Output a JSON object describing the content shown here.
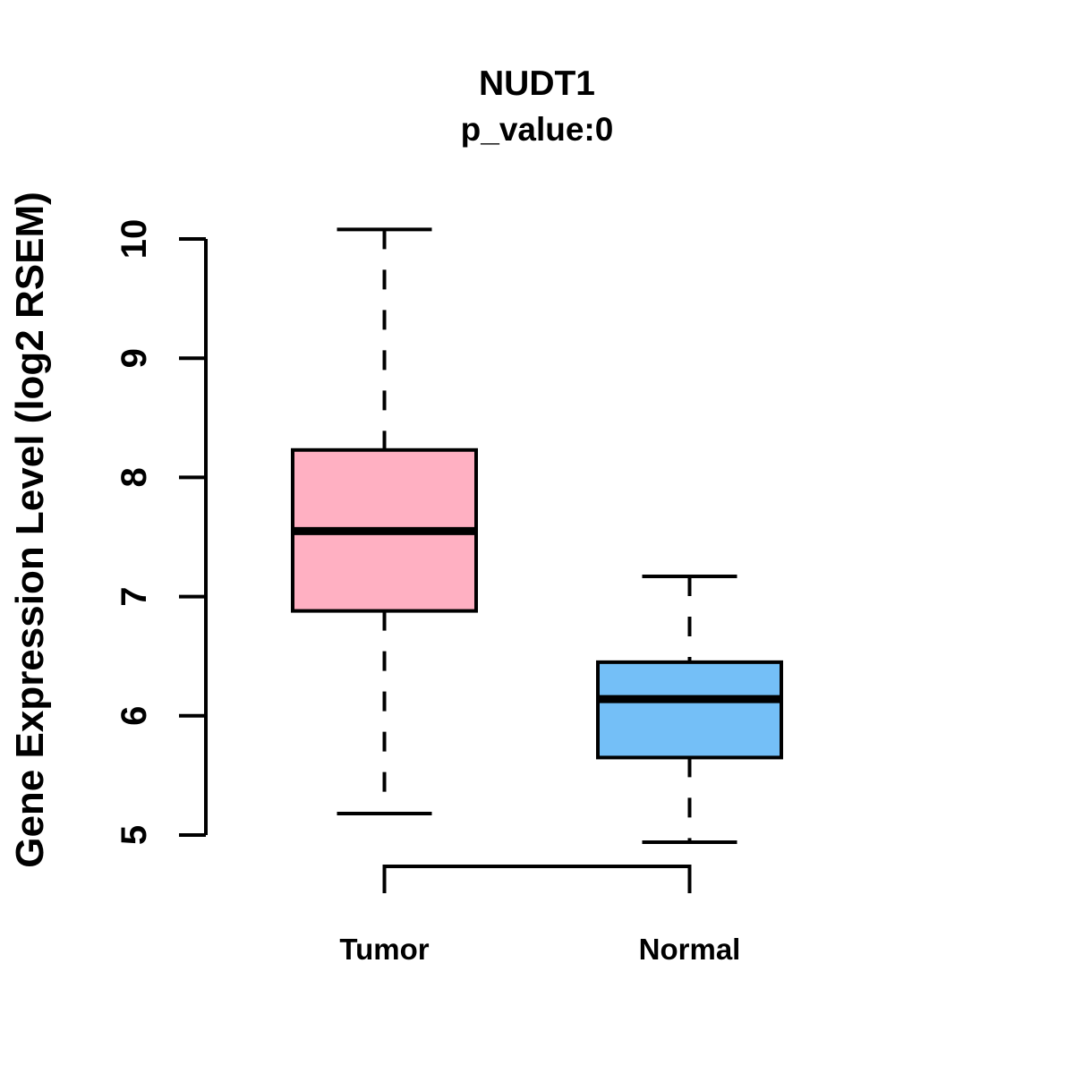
{
  "chart_data": {
    "type": "boxplot",
    "title": "NUDT1",
    "subtitle": "p_value:0",
    "ylabel": "Gene Expression Level (log2 RSEM)",
    "categories": [
      "Tumor",
      "Normal"
    ],
    "series": [
      {
        "name": "Tumor",
        "whisker_low": 5.18,
        "q1": 6.88,
        "median": 7.55,
        "q3": 8.23,
        "whisker_high": 10.08,
        "color": "#FFB0C2"
      },
      {
        "name": "Normal",
        "whisker_low": 4.94,
        "q1": 5.65,
        "median": 6.14,
        "q3": 6.45,
        "whisker_high": 7.17,
        "color": "#74BFF7"
      }
    ],
    "yticks": [
      5,
      6,
      7,
      8,
      9,
      10
    ],
    "ylim": [
      5,
      10
    ],
    "axis_color": "#000000",
    "background_color": "#ffffff",
    "whisker_style": "dashed",
    "legend": "none",
    "grid": "off",
    "comparison_bracket": {
      "from": "Tumor",
      "to": "Normal"
    }
  }
}
